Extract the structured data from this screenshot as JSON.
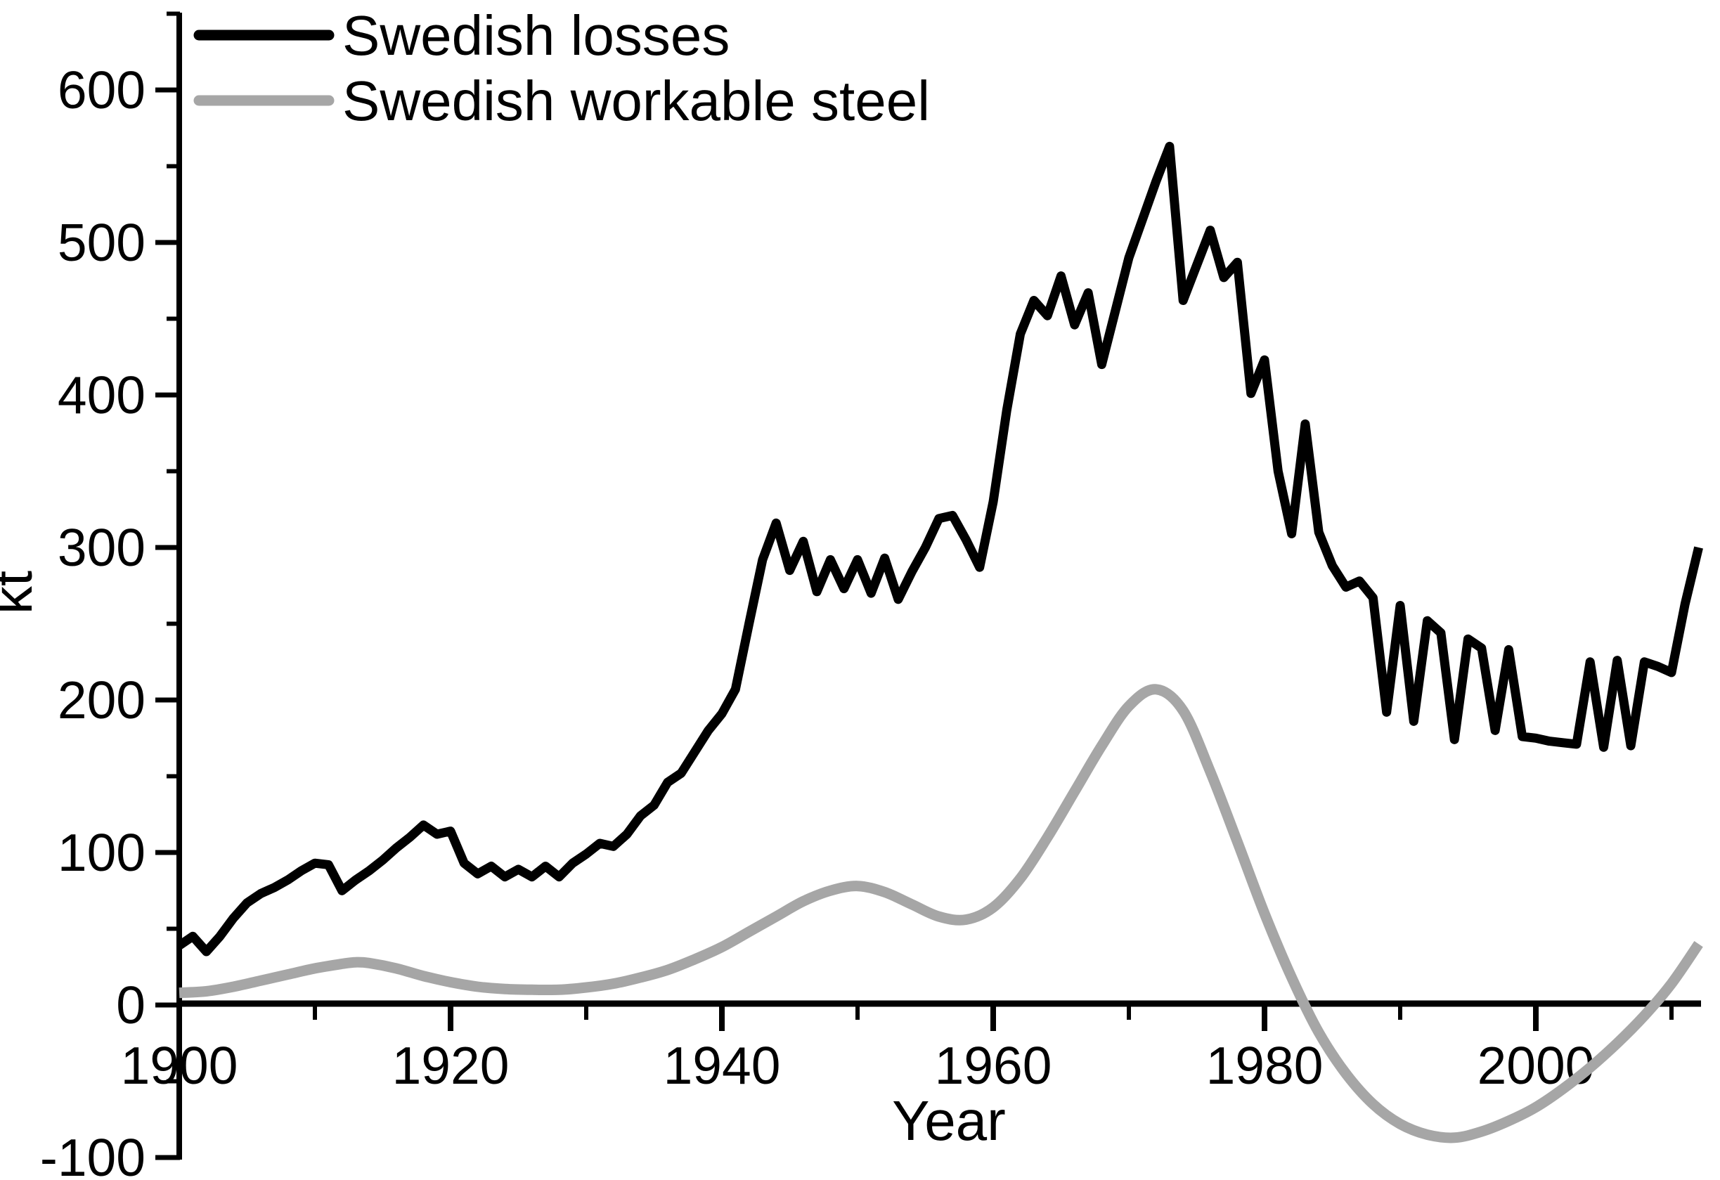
{
  "chart_data": {
    "type": "line",
    "title": "",
    "xlabel": "Year",
    "ylabel": "kt",
    "grid": false,
    "legend_position": "top-left-inside",
    "xlim": [
      1900,
      2012
    ],
    "ylim": [
      -100,
      650
    ],
    "x_ticks_major": [
      1900,
      1920,
      1940,
      1960,
      1980,
      2000
    ],
    "x_tick_labels": [
      "1900",
      "1920",
      "1940",
      "1960",
      "1980",
      "2000"
    ],
    "x_ticks_minor": [
      1910,
      1930,
      1950,
      1970,
      1990,
      2010
    ],
    "y_ticks_major": [
      -100,
      0,
      100,
      200,
      300,
      400,
      500,
      600
    ],
    "y_tick_labels": [
      "-100",
      "0",
      "100",
      "200",
      "300",
      "400",
      "500",
      "600"
    ],
    "y_ticks_minor": [
      -50,
      50,
      150,
      250,
      350,
      450,
      550,
      650
    ],
    "series": [
      {
        "name": "Swedish losses",
        "color": "#000000",
        "stroke_width": 13,
        "style": "jagged",
        "x_start": 1900,
        "x_step": 1,
        "values": [
          39,
          45,
          35,
          45,
          57,
          67,
          73,
          77,
          82,
          88,
          93,
          92,
          75,
          82,
          88,
          95,
          103,
          110,
          118,
          112,
          114,
          93,
          86,
          91,
          84,
          89,
          84,
          91,
          84,
          93,
          99,
          106,
          104,
          112,
          124,
          131,
          146,
          152,
          166,
          180,
          191,
          207,
          250,
          292,
          316,
          285,
          304,
          271,
          292,
          273,
          292,
          270,
          293,
          266,
          284,
          300,
          319,
          321,
          305,
          287,
          330,
          390,
          440,
          462,
          452,
          478,
          446,
          467,
          420,
          455,
          490,
          515,
          540,
          563,
          462,
          485,
          508,
          477,
          487,
          401,
          423,
          350,
          309,
          381,
          310,
          288,
          274,
          278,
          267,
          192,
          262,
          186,
          252,
          244,
          174,
          240,
          234,
          180,
          233,
          176,
          175,
          173,
          172,
          171,
          225,
          169,
          226,
          170,
          225,
          222,
          218,
          263,
          300
        ]
      },
      {
        "name": "Swedish workable steel",
        "color": "#a6a6a6",
        "stroke_width": 15,
        "style": "smooth",
        "points": [
          [
            1900,
            8
          ],
          [
            1902,
            9
          ],
          [
            1904,
            12
          ],
          [
            1906,
            16
          ],
          [
            1908,
            20
          ],
          [
            1910,
            24
          ],
          [
            1912,
            27
          ],
          [
            1913,
            28
          ],
          [
            1914,
            27.5
          ],
          [
            1916,
            24
          ],
          [
            1918,
            19
          ],
          [
            1920,
            15
          ],
          [
            1922,
            12
          ],
          [
            1924,
            10.5
          ],
          [
            1926,
            10
          ],
          [
            1928,
            10
          ],
          [
            1930,
            11.5
          ],
          [
            1932,
            14
          ],
          [
            1934,
            18
          ],
          [
            1936,
            23
          ],
          [
            1938,
            30
          ],
          [
            1940,
            38
          ],
          [
            1942,
            48
          ],
          [
            1944,
            58
          ],
          [
            1946,
            68
          ],
          [
            1948,
            75
          ],
          [
            1950,
            78
          ],
          [
            1952,
            74
          ],
          [
            1954,
            66
          ],
          [
            1956,
            58
          ],
          [
            1958,
            56
          ],
          [
            1960,
            64
          ],
          [
            1962,
            83
          ],
          [
            1964,
            110
          ],
          [
            1966,
            140
          ],
          [
            1968,
            170
          ],
          [
            1970,
            196
          ],
          [
            1972,
            207
          ],
          [
            1974,
            193
          ],
          [
            1976,
            153
          ],
          [
            1978,
            107
          ],
          [
            1980,
            60
          ],
          [
            1982,
            18
          ],
          [
            1984,
            -18
          ],
          [
            1986,
            -45
          ],
          [
            1988,
            -65
          ],
          [
            1990,
            -78
          ],
          [
            1992,
            -85
          ],
          [
            1994,
            -87
          ],
          [
            1996,
            -83
          ],
          [
            1998,
            -76
          ],
          [
            2000,
            -67
          ],
          [
            2002,
            -55
          ],
          [
            2004,
            -41
          ],
          [
            2006,
            -25
          ],
          [
            2008,
            -7
          ],
          [
            2010,
            14
          ],
          [
            2012,
            40
          ]
        ]
      }
    ]
  }
}
